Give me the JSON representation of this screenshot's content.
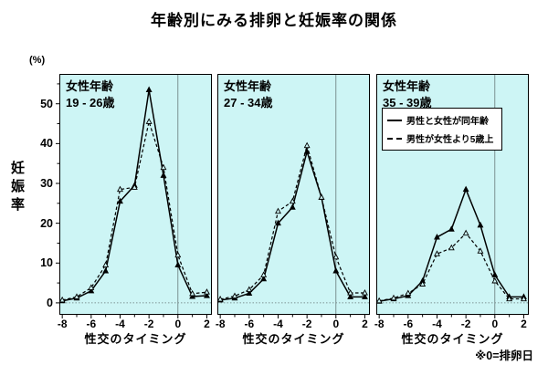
{
  "title": "年齢別にみる排卵と妊娠率の関係",
  "y_axis": {
    "unit_label": "(%)",
    "label": "妊娠率",
    "ticks": [
      0,
      10,
      20,
      30,
      40,
      50
    ]
  },
  "x_axis": {
    "label": "性交のタイミング",
    "ticks": [
      -8,
      -6,
      -4,
      -2,
      0,
      2
    ]
  },
  "footnote": "※0=排卵日",
  "colors": {
    "panel_bg": "#cdf5f5",
    "line": "#000000",
    "grid": "#667777"
  },
  "chart_data": [
    {
      "type": "line",
      "title_lines": [
        "女性年齢",
        "19 - 26歳"
      ],
      "x": [
        -8,
        -7,
        -6,
        -5,
        -4,
        -3,
        -2,
        -1,
        0,
        1,
        2
      ],
      "xticks": [
        -8,
        -6,
        -4,
        -2,
        0,
        2
      ],
      "yticks": [
        0,
        10,
        20,
        30,
        40,
        50
      ],
      "xlabel": "性交のタイミング",
      "ylabel": "妊娠率 (%)",
      "ylim": [
        0,
        57
      ],
      "grid": "zero-line and vertical line at x=0 only",
      "series": [
        {
          "name": "男性と女性が同年齢",
          "style": "solid",
          "values": [
            0.5,
            1.2,
            3.0,
            8.0,
            25.5,
            29.5,
            53.5,
            32.0,
            9.5,
            1.6,
            1.8
          ]
        },
        {
          "name": "男性が女性より5歳上",
          "style": "dashed",
          "values": [
            0.7,
            1.5,
            3.8,
            9.5,
            28.5,
            29.0,
            45.5,
            34.0,
            12.0,
            2.3,
            2.7
          ]
        }
      ]
    },
    {
      "type": "line",
      "title_lines": [
        "女性年齢",
        "27 - 34歳"
      ],
      "x": [
        -8,
        -7,
        -6,
        -5,
        -4,
        -3,
        -2,
        -1,
        0,
        1,
        2
      ],
      "xticks": [
        -8,
        -6,
        -4,
        -2,
        0,
        2
      ],
      "yticks": [
        0,
        10,
        20,
        30,
        40,
        50
      ],
      "xlabel": "性交のタイミング",
      "ylabel": "",
      "ylim": [
        0,
        57
      ],
      "grid": "zero-line and vertical line at x=0 only",
      "series": [
        {
          "name": "男性と女性が同年齢",
          "style": "solid",
          "values": [
            0.7,
            1.2,
            2.4,
            6.0,
            20.0,
            24.0,
            38.0,
            26.5,
            8.0,
            1.5,
            1.5
          ]
        },
        {
          "name": "男性が女性より5歳上",
          "style": "dashed",
          "values": [
            0.9,
            1.7,
            3.3,
            7.0,
            23.0,
            25.5,
            39.5,
            26.5,
            11.5,
            2.5,
            2.5
          ]
        }
      ]
    },
    {
      "type": "line",
      "title_lines": [
        "女性年齢",
        "35 - 39歳"
      ],
      "x": [
        -8,
        -7,
        -6,
        -5,
        -4,
        -3,
        -2,
        -1,
        0,
        1,
        2
      ],
      "xticks": [
        -8,
        -6,
        -4,
        -2,
        0,
        2
      ],
      "yticks": [
        0,
        10,
        20,
        30,
        40,
        50
      ],
      "xlabel": "性交のタイミング",
      "ylabel": "",
      "ylim": [
        0,
        57
      ],
      "grid": "zero-line and vertical line at x=0 only",
      "legend_position": "top-left-in-panel",
      "series": [
        {
          "name": "男性と女性が同年齢",
          "style": "solid",
          "values": [
            0.4,
            1.0,
            1.8,
            5.5,
            16.5,
            18.5,
            28.5,
            19.5,
            7.0,
            1.5,
            1.5
          ]
        },
        {
          "name": "男性が女性より5歳上",
          "style": "dashed",
          "values": [
            0.5,
            1.2,
            2.4,
            4.7,
            12.3,
            13.8,
            17.5,
            13.0,
            5.5,
            1.0,
            1.0
          ]
        }
      ]
    }
  ]
}
